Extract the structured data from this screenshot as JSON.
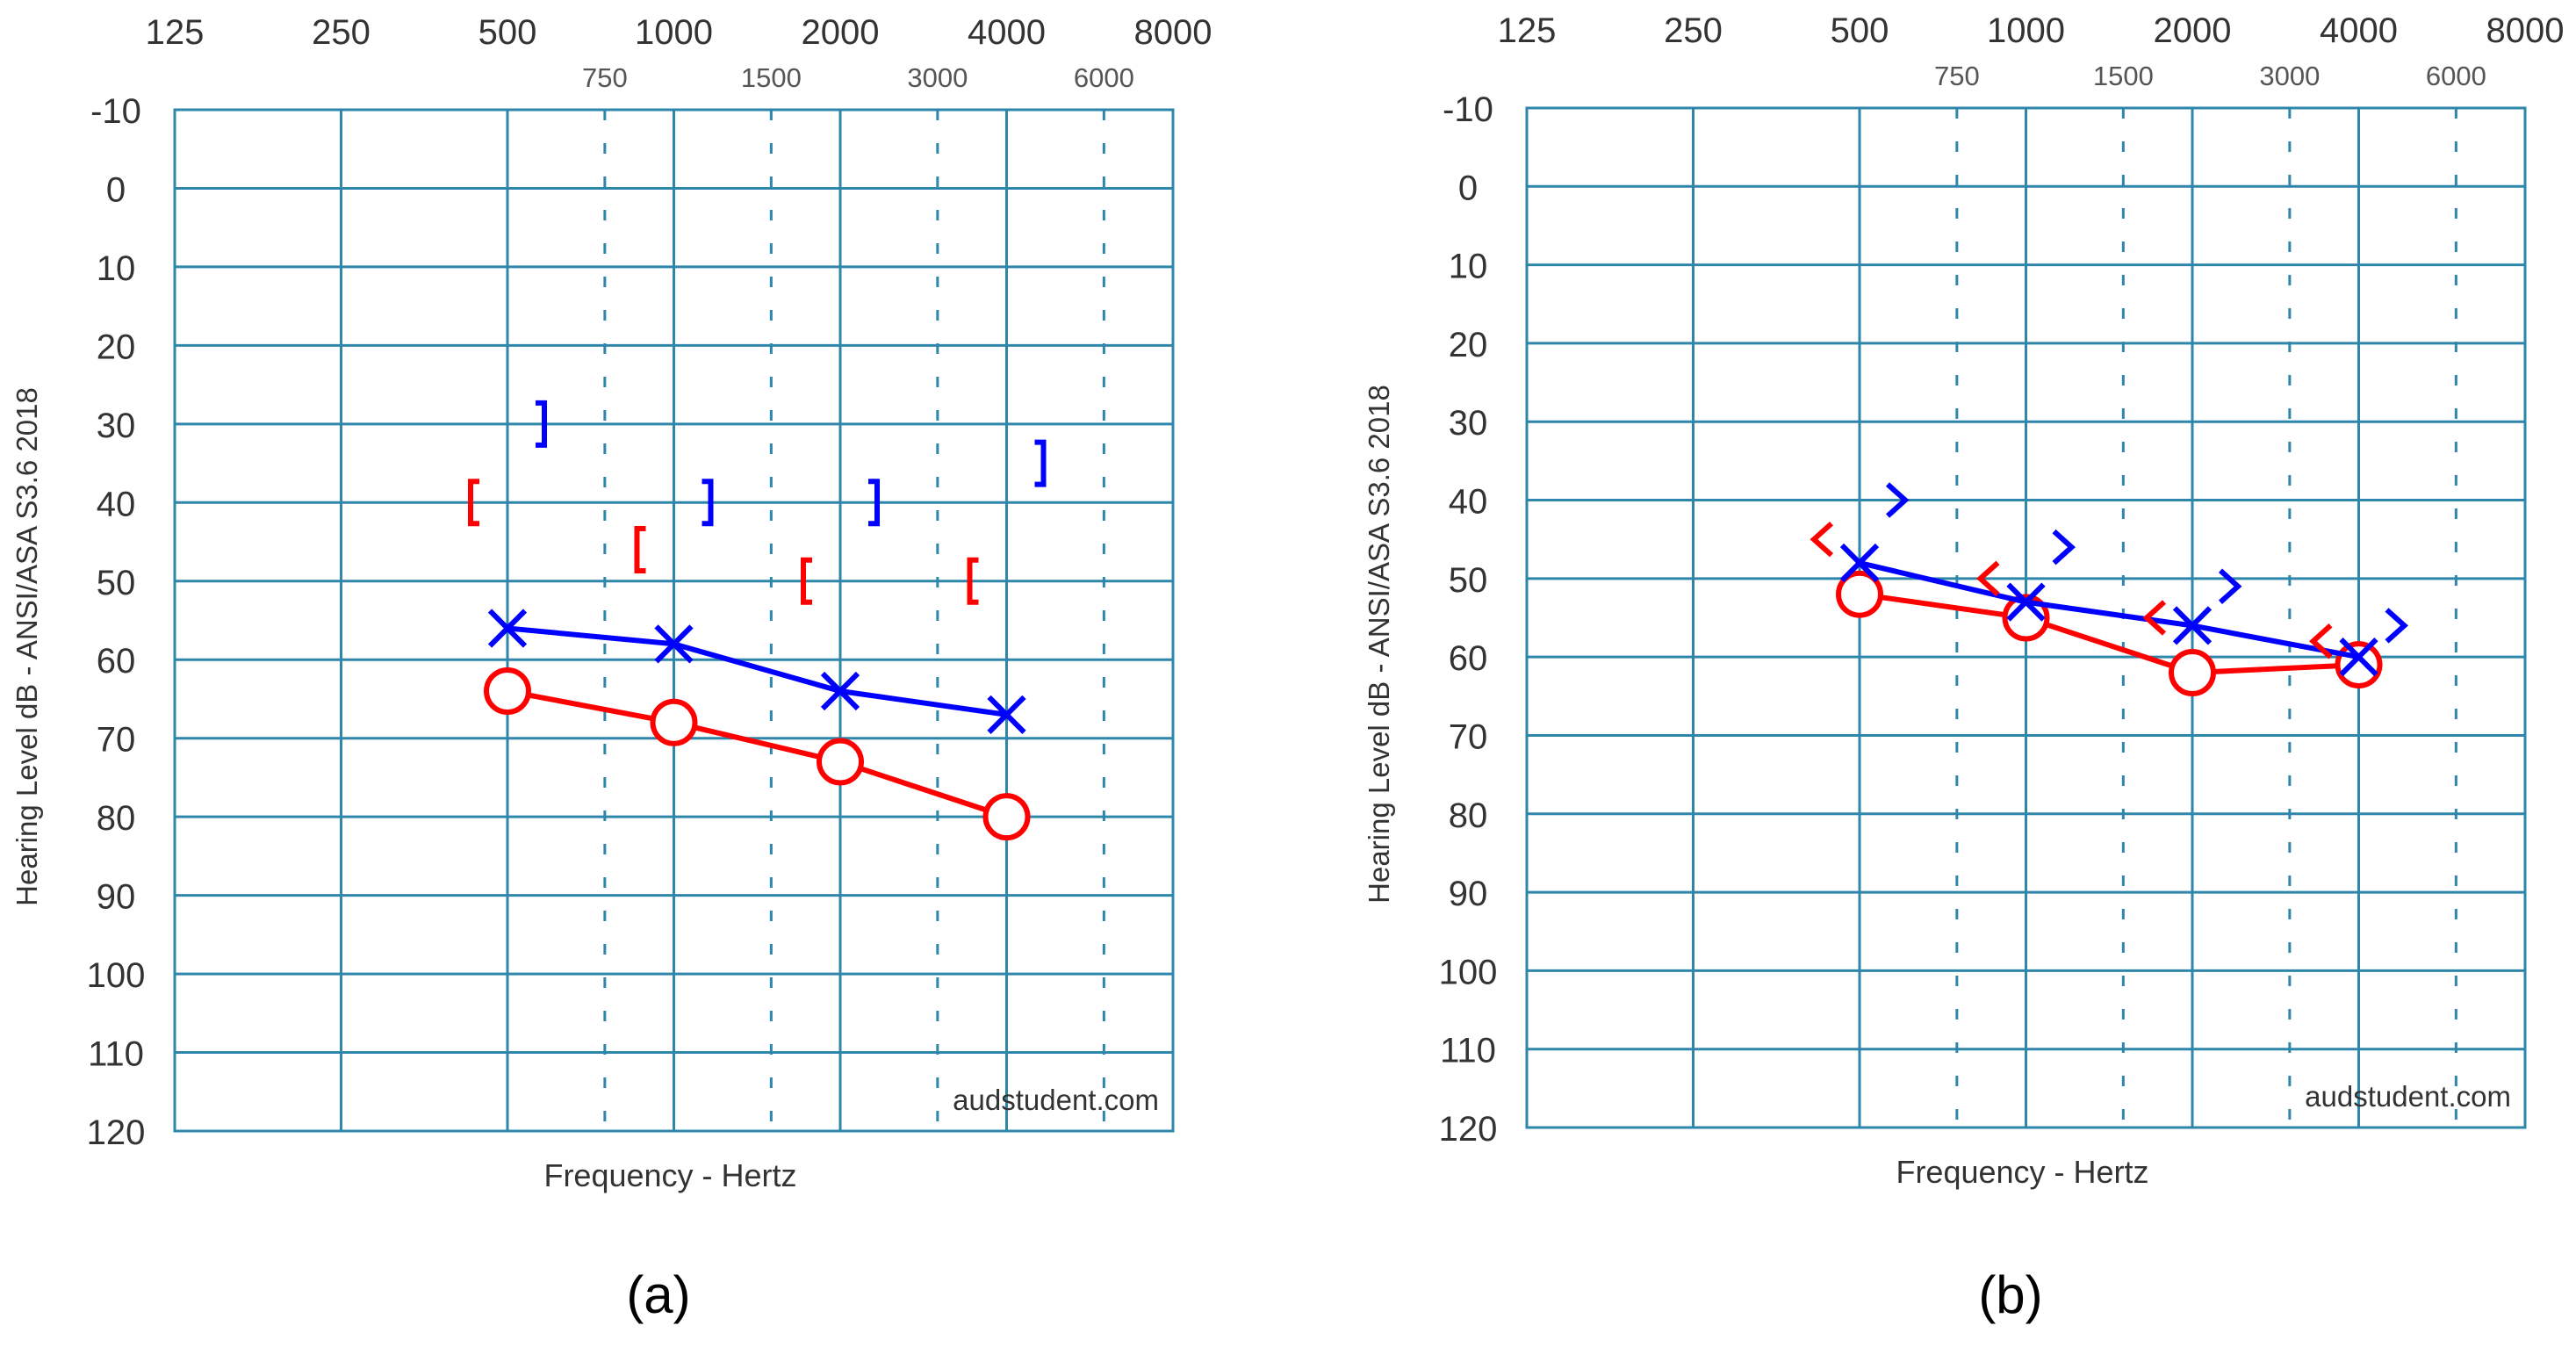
{
  "colors": {
    "grid": "#2E86AB",
    "right_ear": "#FF0000",
    "left_ear": "#0000FF",
    "text": "#333333",
    "background": "#FFFFFF"
  },
  "chart_data": [
    {
      "type": "line",
      "caption": "(a)",
      "xlabel": "Frequency - Hertz",
      "ylabel": "Hearing Level dB - ANSI/ASA S3.6 2018",
      "watermark": "audstudent.com",
      "x_scale": "log2",
      "x_major_ticks": [
        125,
        250,
        500,
        1000,
        2000,
        4000,
        8000
      ],
      "x_minor_ticks": [
        750,
        1500,
        3000,
        6000
      ],
      "y_ticks": [
        -10,
        0,
        10,
        20,
        30,
        40,
        50,
        60,
        70,
        80,
        90,
        100,
        110,
        120
      ],
      "ylim": [
        120,
        -10
      ],
      "grid": true,
      "series": [
        {
          "ear": "right",
          "condition": "air",
          "symbol": "circle",
          "color": "#FF0000",
          "connected": true,
          "x": [
            500,
            1000,
            2000,
            4000
          ],
          "y": [
            64,
            68,
            73,
            80
          ]
        },
        {
          "ear": "left",
          "condition": "air",
          "symbol": "x",
          "color": "#0000FF",
          "connected": true,
          "x": [
            500,
            1000,
            2000,
            4000
          ],
          "y": [
            56,
            58,
            64,
            67
          ]
        },
        {
          "ear": "right",
          "condition": "bone-masked",
          "symbol": "bracket-left",
          "color": "#FF0000",
          "connected": false,
          "x": [
            500,
            1000,
            2000,
            4000
          ],
          "y": [
            40,
            46,
            50,
            50
          ]
        },
        {
          "ear": "left",
          "condition": "bone-masked",
          "symbol": "bracket-right",
          "color": "#0000FF",
          "connected": false,
          "x": [
            500,
            1000,
            2000,
            4000
          ],
          "y": [
            30,
            40,
            40,
            35
          ]
        }
      ]
    },
    {
      "type": "line",
      "caption": "(b)",
      "xlabel": "Frequency - Hertz",
      "ylabel": "Hearing Level dB - ANSI/ASA S3.6 2018",
      "watermark": "audstudent.com",
      "x_scale": "log2",
      "x_major_ticks": [
        125,
        250,
        500,
        1000,
        2000,
        4000,
        8000
      ],
      "x_minor_ticks": [
        750,
        1500,
        3000,
        6000
      ],
      "y_ticks": [
        -10,
        0,
        10,
        20,
        30,
        40,
        50,
        60,
        70,
        80,
        90,
        100,
        110,
        120
      ],
      "ylim": [
        120,
        -10
      ],
      "grid": true,
      "series": [
        {
          "ear": "right",
          "condition": "air",
          "symbol": "circle",
          "color": "#FF0000",
          "connected": true,
          "x": [
            500,
            1000,
            2000,
            4000
          ],
          "y": [
            52,
            55,
            62,
            61
          ]
        },
        {
          "ear": "left",
          "condition": "air",
          "symbol": "x",
          "color": "#0000FF",
          "connected": true,
          "x": [
            500,
            1000,
            2000,
            4000
          ],
          "y": [
            48,
            53,
            56,
            60
          ]
        },
        {
          "ear": "right",
          "condition": "bone-unmasked",
          "symbol": "angle-left",
          "color": "#FF0000",
          "connected": false,
          "x": [
            500,
            1000,
            2000,
            4000
          ],
          "y": [
            45,
            50,
            55,
            58
          ]
        },
        {
          "ear": "left",
          "condition": "bone-unmasked",
          "symbol": "angle-right",
          "color": "#0000FF",
          "connected": false,
          "x": [
            500,
            1000,
            2000,
            4000
          ],
          "y": [
            40,
            46,
            51,
            56
          ]
        }
      ]
    }
  ]
}
